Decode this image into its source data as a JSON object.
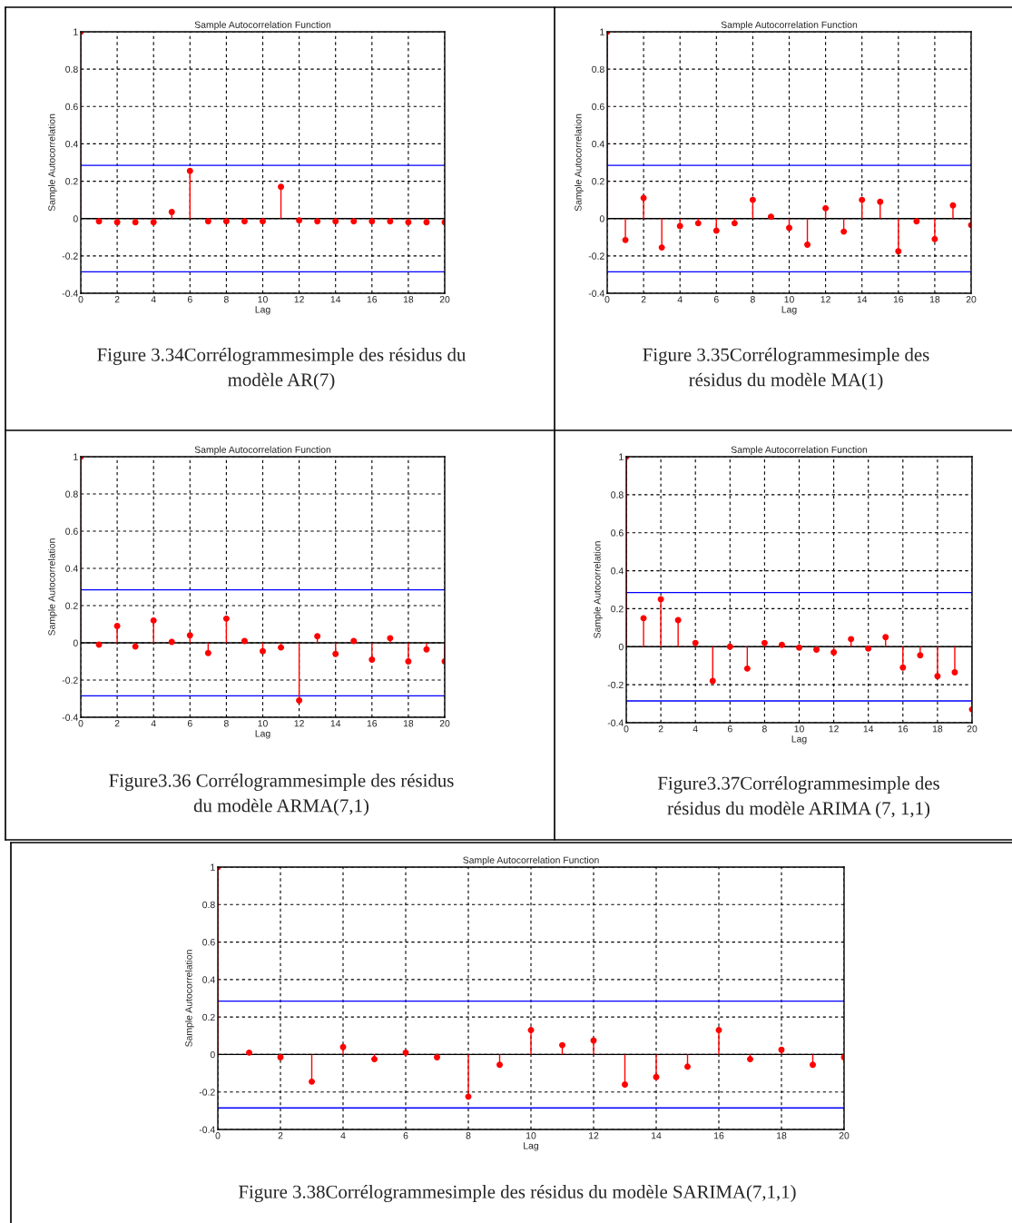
{
  "chart_data": [
    {
      "type": "lollipop",
      "title": "Sample Autocorrelation Function",
      "xlabel": "Lag",
      "ylabel": "Sample Autocorrelation",
      "x": [
        0,
        1,
        2,
        3,
        4,
        5,
        6,
        7,
        8,
        9,
        10,
        11,
        12,
        13,
        14,
        15,
        16,
        17,
        18,
        19,
        20
      ],
      "series": [
        {
          "color": "#ff0000",
          "values": [
            1,
            -0.015,
            -0.02,
            -0.02,
            -0.02,
            0.035,
            0.255,
            -0.015,
            -0.015,
            -0.015,
            -0.015,
            0.17,
            -0.01,
            -0.015,
            -0.015,
            -0.015,
            -0.015,
            -0.015,
            -0.02,
            -0.02,
            -0.02
          ]
        }
      ],
      "ref_lines": [
        {
          "axis": "y",
          "value": 0.285,
          "color": "#0000ff"
        },
        {
          "axis": "y",
          "value": -0.285,
          "color": "#0000ff"
        }
      ],
      "xlim": [
        0,
        20
      ],
      "xticks": [
        0,
        2,
        4,
        6,
        8,
        10,
        12,
        14,
        16,
        18,
        20
      ],
      "ylim": [
        -0.4,
        1
      ],
      "yticks": [
        -0.4,
        -0.2,
        0,
        0.2,
        0.4,
        0.6,
        0.8,
        1
      ],
      "grid": true,
      "marker": "circle",
      "annotations": [
        "Figure 3.34Corrélogrammesimple des résidus du\nmodèle AR(7)"
      ]
    },
    {
      "type": "lollipop",
      "title": "Sample Autocorrelation Function",
      "xlabel": "Lag",
      "ylabel": "Sample Autocorrelation",
      "x": [
        0,
        1,
        2,
        3,
        4,
        5,
        6,
        7,
        8,
        9,
        10,
        11,
        12,
        13,
        14,
        15,
        16,
        17,
        18,
        19,
        20
      ],
      "series": [
        {
          "color": "#ff0000",
          "values": [
            1,
            -0.115,
            0.11,
            -0.155,
            -0.04,
            -0.025,
            -0.065,
            -0.025,
            0.1,
            0.01,
            -0.05,
            -0.14,
            0.055,
            -0.07,
            0.1,
            0.09,
            -0.175,
            -0.015,
            -0.11,
            0.07,
            -0.035
          ]
        }
      ],
      "ref_lines": [
        {
          "axis": "y",
          "value": 0.285,
          "color": "#0000ff"
        },
        {
          "axis": "y",
          "value": -0.285,
          "color": "#0000ff"
        }
      ],
      "xlim": [
        0,
        20
      ],
      "xticks": [
        0,
        2,
        4,
        6,
        8,
        10,
        12,
        14,
        16,
        18,
        20
      ],
      "ylim": [
        -0.4,
        1
      ],
      "yticks": [
        -0.4,
        -0.2,
        0,
        0.2,
        0.4,
        0.6,
        0.8,
        1
      ],
      "grid": true,
      "marker": "circle",
      "annotations": [
        "Figure 3.35Corrélogrammesimple des\nrésidus du modèle MA(1)"
      ]
    },
    {
      "type": "lollipop",
      "title": "Sample Autocorrelation Function",
      "xlabel": "Lag",
      "ylabel": "Sample Autocorrelation",
      "x": [
        0,
        1,
        2,
        3,
        4,
        5,
        6,
        7,
        8,
        9,
        10,
        11,
        12,
        13,
        14,
        15,
        16,
        17,
        18,
        19,
        20
      ],
      "series": [
        {
          "color": "#ff0000",
          "values": [
            1,
            -0.01,
            0.09,
            -0.02,
            0.12,
            0.005,
            0.04,
            -0.055,
            0.13,
            0.01,
            -0.045,
            -0.025,
            -0.31,
            0.035,
            -0.06,
            0.01,
            -0.09,
            0.025,
            -0.1,
            -0.035,
            -0.1
          ]
        }
      ],
      "ref_lines": [
        {
          "axis": "y",
          "value": 0.285,
          "color": "#0000ff"
        },
        {
          "axis": "y",
          "value": -0.285,
          "color": "#0000ff"
        }
      ],
      "xlim": [
        0,
        20
      ],
      "xticks": [
        0,
        2,
        4,
        6,
        8,
        10,
        12,
        14,
        16,
        18,
        20
      ],
      "ylim": [
        -0.4,
        1
      ],
      "yticks": [
        -0.4,
        -0.2,
        0,
        0.2,
        0.4,
        0.6,
        0.8,
        1
      ],
      "grid": true,
      "marker": "circle",
      "annotations": [
        "Figure3.36 Corrélogrammesimple des résidus\ndu modèle ARMA(7,1)"
      ]
    },
    {
      "type": "lollipop",
      "title": "Sample Autocorrelation Function",
      "xlabel": "Lag",
      "ylabel": "Sample Autocorrelation",
      "x": [
        0,
        1,
        2,
        3,
        4,
        5,
        6,
        7,
        8,
        9,
        10,
        11,
        12,
        13,
        14,
        15,
        16,
        17,
        18,
        19,
        20
      ],
      "series": [
        {
          "color": "#ff0000",
          "values": [
            1,
            0.15,
            0.25,
            0.14,
            0.02,
            -0.18,
            0,
            -0.115,
            0.02,
            0.01,
            -0.005,
            -0.015,
            -0.03,
            0.04,
            -0.01,
            0.05,
            -0.11,
            -0.045,
            -0.155,
            -0.135,
            -0.33
          ]
        }
      ],
      "ref_lines": [
        {
          "axis": "y",
          "value": 0.285,
          "color": "#0000ff"
        },
        {
          "axis": "y",
          "value": -0.285,
          "color": "#0000ff"
        }
      ],
      "xlim": [
        0,
        20
      ],
      "xticks": [
        0,
        2,
        4,
        6,
        8,
        10,
        12,
        14,
        16,
        18,
        20
      ],
      "ylim": [
        -0.4,
        1
      ],
      "yticks": [
        -0.4,
        -0.2,
        0,
        0.2,
        0.4,
        0.6,
        0.8,
        1
      ],
      "grid": true,
      "marker": "circle",
      "annotations": [
        "Figure3.37Corrélogrammesimple des\nrésidus du modèle ARIMA (7, 1,1)"
      ]
    },
    {
      "type": "lollipop",
      "title": "Sample Autocorrelation Function",
      "xlabel": "Lag",
      "ylabel": "Sample Autocorrelation",
      "x": [
        0,
        1,
        2,
        3,
        4,
        5,
        6,
        7,
        8,
        9,
        10,
        11,
        12,
        13,
        14,
        15,
        16,
        17,
        18,
        19,
        20
      ],
      "series": [
        {
          "color": "#ff0000",
          "values": [
            1,
            0.01,
            -0.015,
            -0.145,
            0.04,
            -0.025,
            0.01,
            -0.015,
            -0.225,
            -0.055,
            0.13,
            0.05,
            0.075,
            -0.16,
            -0.12,
            -0.065,
            0.13,
            -0.025,
            0.025,
            -0.055,
            -0.015
          ]
        }
      ],
      "ref_lines": [
        {
          "axis": "y",
          "value": 0.285,
          "color": "#0000ff"
        },
        {
          "axis": "y",
          "value": -0.285,
          "color": "#0000ff"
        }
      ],
      "xlim": [
        0,
        20
      ],
      "xticks": [
        0,
        2,
        4,
        6,
        8,
        10,
        12,
        14,
        16,
        18,
        20
      ],
      "ylim": [
        -0.4,
        1
      ],
      "yticks": [
        -0.4,
        -0.2,
        0,
        0.2,
        0.4,
        0.6,
        0.8,
        1
      ],
      "grid": true,
      "marker": "circle",
      "annotations": [
        "Figure 3.38Corrélogrammesimple des résidus du modèle SARIMA(7,1,1)"
      ]
    }
  ]
}
